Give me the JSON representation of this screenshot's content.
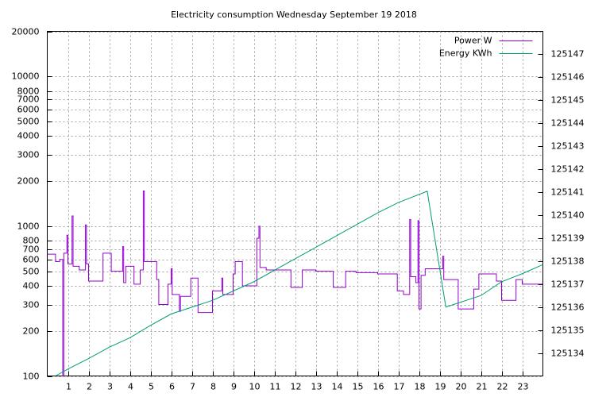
{
  "chart_data": {
    "type": "line",
    "title": "Electricity consumption Wednesday September 19 2018",
    "xlim": [
      0,
      24
    ],
    "xticks": [
      1,
      2,
      3,
      4,
      5,
      6,
      7,
      8,
      9,
      10,
      11,
      12,
      13,
      14,
      15,
      16,
      17,
      18,
      19,
      20,
      21,
      22,
      23
    ],
    "ylim": [
      100,
      20000
    ],
    "yscale": "log",
    "yticks": [
      100,
      200,
      300,
      400,
      500,
      600,
      700,
      800,
      1000,
      2000,
      3000,
      4000,
      5000,
      6000,
      7000,
      8000,
      10000,
      20000
    ],
    "y2lim": [
      125133,
      125148
    ],
    "y2ticks": [
      125134,
      125135,
      125136,
      125137,
      125138,
      125139,
      125140,
      125141,
      125142,
      125143,
      125144,
      125145,
      125146,
      125147
    ],
    "grid": true,
    "legend": "top right",
    "series": [
      {
        "name": "Power W",
        "color": "#9400d3",
        "steps": true,
        "x": [
          0,
          0.4,
          0.6,
          0.75,
          0.8,
          0.95,
          1.0,
          1.2,
          1.25,
          1.55,
          1.85,
          1.9,
          2.0,
          2.7,
          3.1,
          3.65,
          3.7,
          3.8,
          4.2,
          4.5,
          4.65,
          4.7,
          5.3,
          5.4,
          5.85,
          6.0,
          6.05,
          6.4,
          6.45,
          6.95,
          7.3,
          8.0,
          8.45,
          8.5,
          9.0,
          9.1,
          9.45,
          10.15,
          10.25,
          10.3,
          10.6,
          11.8,
          12.35,
          13.0,
          13.85,
          14.45,
          14.95,
          16.0,
          16.95,
          17.25,
          17.55,
          17.6,
          17.85,
          17.95,
          18.0,
          18.1,
          18.3,
          19.15,
          19.2,
          19.9,
          20.65,
          20.9,
          21.75,
          22.0,
          22.7,
          23.0,
          24
        ],
        "values": [
          650,
          580,
          600,
          100,
          660,
          870,
          560,
          1170,
          540,
          510,
          1020,
          560,
          430,
          660,
          500,
          730,
          420,
          540,
          410,
          510,
          1720,
          580,
          440,
          300,
          410,
          520,
          350,
          270,
          340,
          450,
          265,
          370,
          450,
          350,
          480,
          580,
          400,
          830,
          1000,
          530,
          510,
          390,
          510,
          500,
          390,
          500,
          490,
          480,
          370,
          350,
          1110,
          460,
          420,
          1090,
          280,
          470,
          520,
          630,
          440,
          280,
          380,
          480,
          430,
          320,
          440,
          410,
          410
        ]
      },
      {
        "name": "Energy KWh",
        "color": "#009e73",
        "axis": "y2",
        "x": [
          0.4,
          1,
          2,
          3,
          4,
          5,
          6,
          8,
          10,
          12,
          14,
          16,
          17,
          18.4,
          19.3,
          21,
          22,
          23,
          24
        ],
        "values": [
          125133.0,
          125133.3,
          125133.76,
          125134.25,
          125134.66,
          125135.2,
          125135.7,
          125136.29,
          125137.1,
          125138.1,
          125139.1,
          125140.1,
          125140.55,
          125141.04,
          125136.0,
          125136.5,
          125137.1,
          125137.45,
          125137.85
        ]
      }
    ]
  }
}
